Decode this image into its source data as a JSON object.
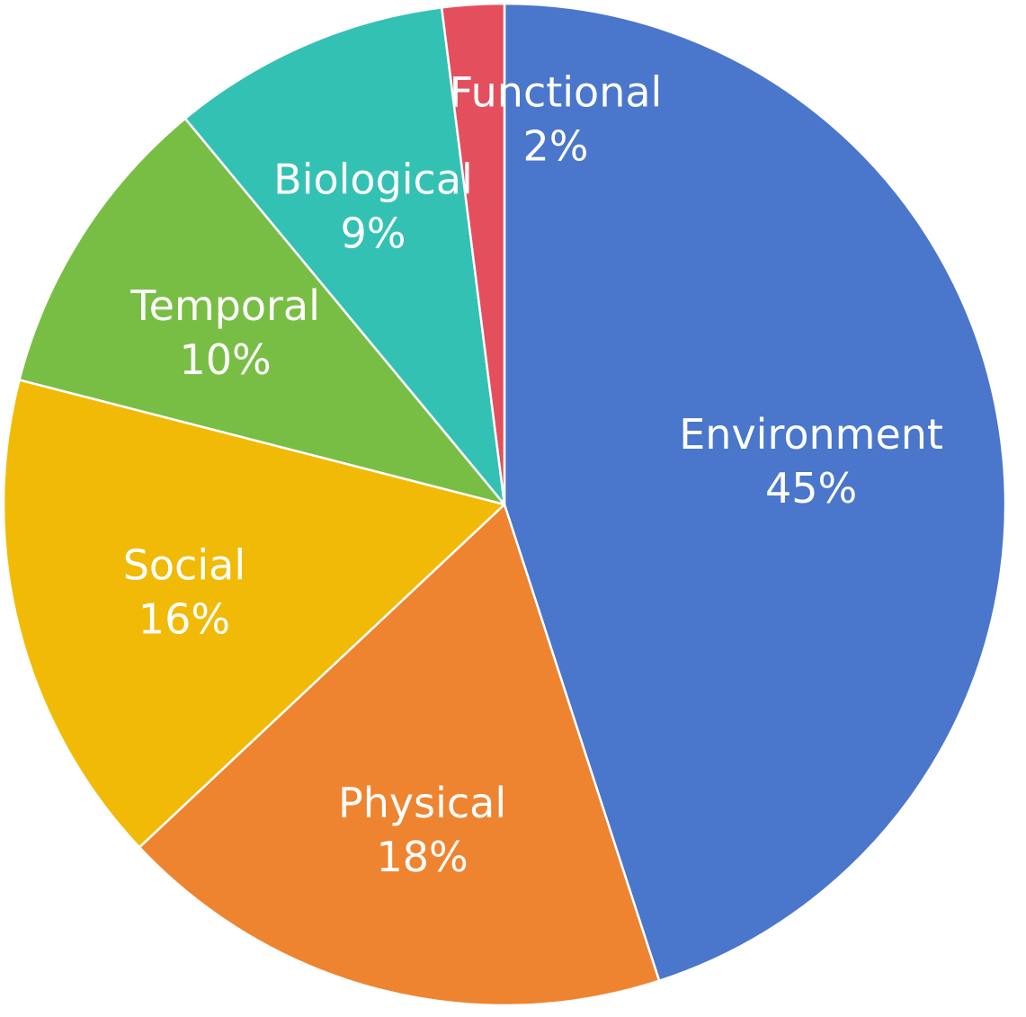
{
  "chart_data": {
    "type": "pie",
    "title": "",
    "slices": [
      {
        "label": "Environment",
        "value": 45,
        "value_label": "45%",
        "color": "#4A76CB"
      },
      {
        "label": "Physical",
        "value": 18,
        "value_label": "18%",
        "color": "#EE8430"
      },
      {
        "label": "Social",
        "value": 16,
        "value_label": "16%",
        "color": "#F1BA06"
      },
      {
        "label": "Temporal",
        "value": 10,
        "value_label": "10%",
        "color": "#78BE44"
      },
      {
        "label": "Biological",
        "value": 9,
        "value_label": "9%",
        "color": "#33C1B4"
      },
      {
        "label": "Functional",
        "value": 2,
        "value_label": "2%",
        "color": "#E44F5E"
      }
    ],
    "start_angle_deg": 0,
    "direction": "clockwise",
    "legend": "none",
    "data_labels": "inside"
  }
}
